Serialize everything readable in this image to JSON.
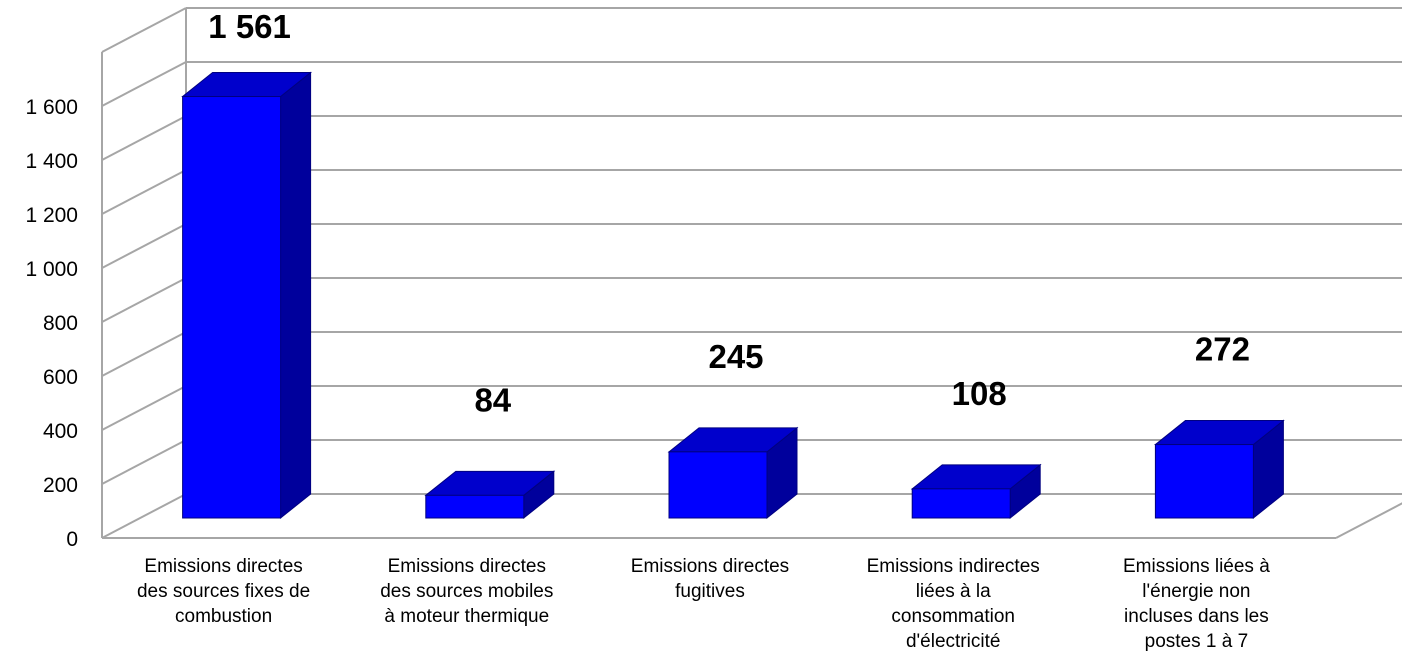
{
  "chart_data": {
    "type": "bar",
    "title": "",
    "xlabel": "",
    "ylabel": "",
    "ylim": [
      0,
      1600
    ],
    "y_ticks": [
      0,
      200,
      400,
      600,
      800,
      1000,
      1200,
      1400,
      1600
    ],
    "y_tick_labels": [
      "0",
      "200",
      "400",
      "600",
      "800",
      "1 000",
      "1 200",
      "1 400",
      "1 600"
    ],
    "grid": true,
    "style": "3d-column",
    "categories": [
      [
        "Emissions directes",
        "des sources fixes de",
        "combustion"
      ],
      [
        "Emissions directes",
        "des sources mobiles",
        "à moteur thermique"
      ],
      [
        "Emissions directes",
        "fugitives"
      ],
      [
        "Emissions indirectes",
        "liées à la",
        "consommation",
        "d'électricité"
      ],
      [
        "Emissions liées à",
        "l'énergie non",
        "incluses dans les",
        "postes 1 à 7"
      ]
    ],
    "values": [
      1561,
      84,
      245,
      108,
      272
    ],
    "data_labels": [
      "1 561",
      "84",
      "245",
      "108",
      "272"
    ],
    "colors": {
      "bar_front": "#0000ff",
      "bar_top": "#0000cc",
      "bar_side": "#00009c",
      "bar_edge": "#000080",
      "grid": "#a6a6a6"
    }
  }
}
